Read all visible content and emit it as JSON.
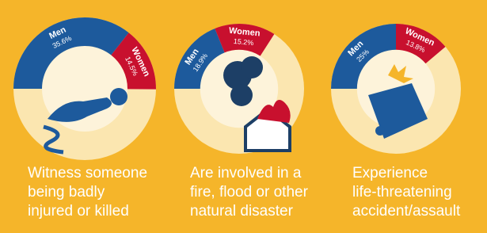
{
  "chart_data": [
    {
      "type": "donut",
      "categories": [
        "Men",
        "Women"
      ],
      "values": [
        35.6,
        14.5
      ],
      "value_labels": [
        "35.6%",
        "14.5%"
      ],
      "colors": [
        "#1d5a9c",
        "#c8102e"
      ],
      "caption": [
        "Witness someone",
        "being badly",
        "injured or killed"
      ]
    },
    {
      "type": "donut",
      "categories": [
        "Men",
        "Women"
      ],
      "values": [
        18.9,
        15.2
      ],
      "value_labels": [
        "18.9%",
        "15.2%"
      ],
      "colors": [
        "#1d5a9c",
        "#c8102e"
      ],
      "caption": [
        "Are involved in a",
        "fire, flood or other",
        "natural disaster"
      ]
    },
    {
      "type": "donut",
      "categories": [
        "Men",
        "Women"
      ],
      "values": [
        25,
        13.8
      ],
      "value_labels": [
        "25%",
        "13.8%"
      ],
      "colors": [
        "#1d5a9c",
        "#c8102e"
      ],
      "caption": [
        "Experience",
        "life-threatening",
        "accident/assault"
      ]
    }
  ]
}
